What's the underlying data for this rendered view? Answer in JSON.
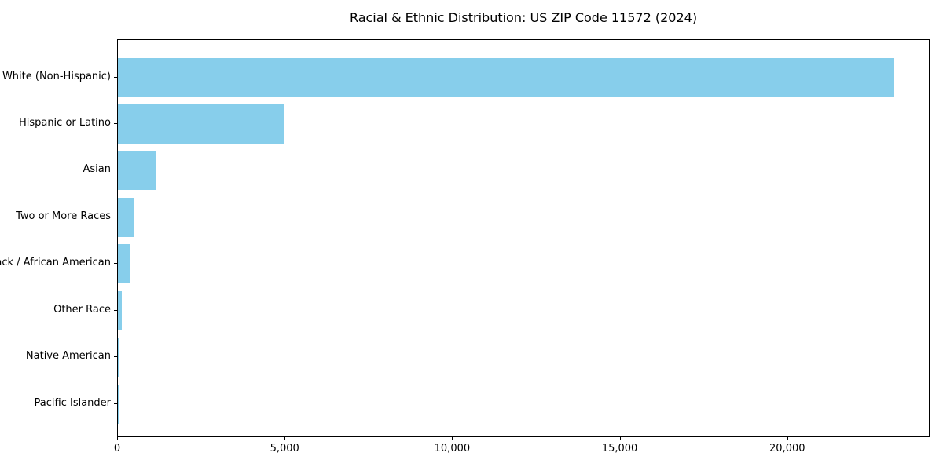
{
  "chart_data": {
    "type": "bar",
    "orientation": "horizontal",
    "title": "Racial & Ethnic Distribution: US ZIP Code 11572 (2024)",
    "categories": [
      "White (Non-Hispanic)",
      "Hispanic or Latino",
      "Asian",
      "Two or More Races",
      "Black / African American",
      "Other Race",
      "Native American",
      "Pacific Islander"
    ],
    "values": [
      23170,
      4950,
      1150,
      475,
      370,
      115,
      12,
      5
    ],
    "xlabel": "",
    "ylabel": "",
    "xlim": [
      0,
      24250
    ],
    "xticks": [
      0,
      5000,
      10000,
      15000,
      20000
    ],
    "xtick_labels": [
      "0",
      "5,000",
      "10,000",
      "15,000",
      "20,000"
    ],
    "bar_color": "#87CEEB",
    "axis_color": "#000000",
    "text_color": "#000000",
    "grid": false,
    "legend": null
  }
}
